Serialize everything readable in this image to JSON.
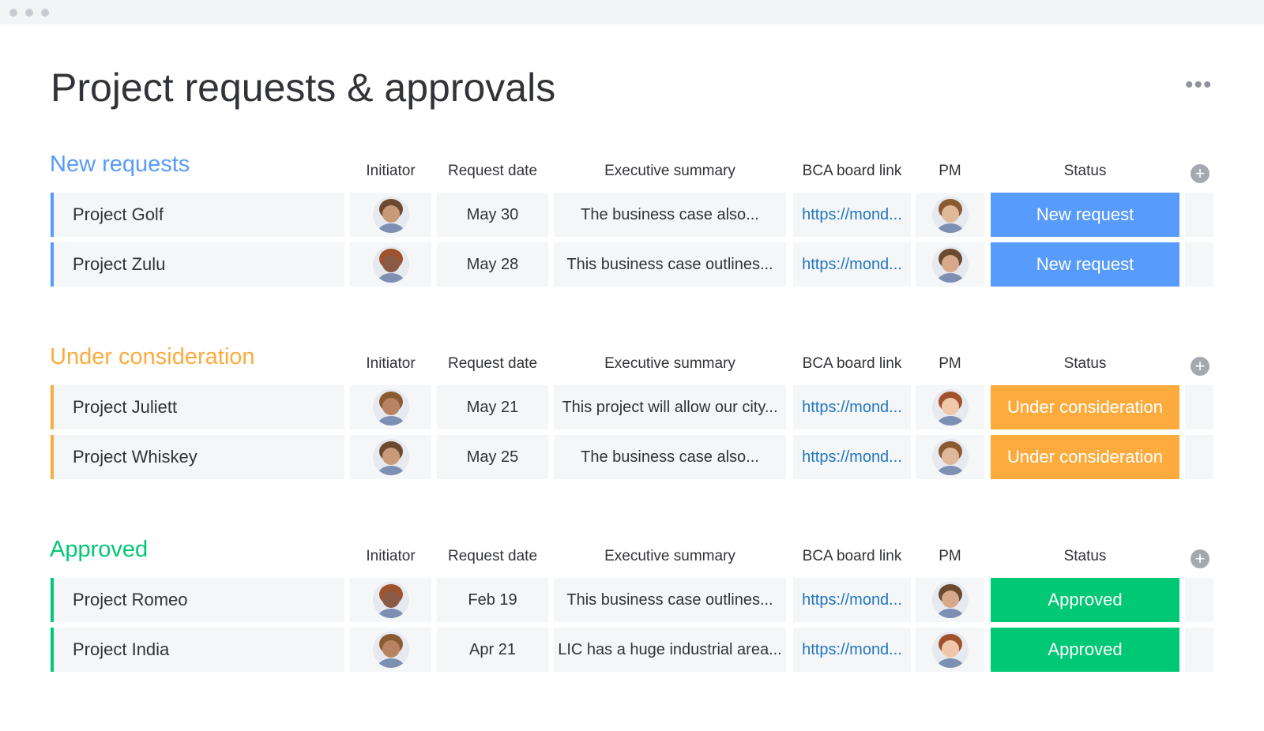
{
  "title": "Project requests & approvals",
  "columns": [
    "Initiator",
    "Request date",
    "Executive summary",
    "BCA board link",
    "PM",
    "Status"
  ],
  "groups": [
    {
      "name": "New requests",
      "color": "#579bfc",
      "rows": [
        {
          "name": "Project Golf",
          "date": "May 30",
          "summary": "The business case also...",
          "link": "https://mond...",
          "status": "New request"
        },
        {
          "name": "Project Zulu",
          "date": "May 28",
          "summary": "This business case outlines...",
          "link": "https://mond...",
          "status": "New request"
        }
      ]
    },
    {
      "name": "Under consideration",
      "color": "#fdab3d",
      "rows": [
        {
          "name": "Project Juliett",
          "date": "May 21",
          "summary": "This project will allow our city...",
          "link": "https://mond...",
          "status": "Under consideration"
        },
        {
          "name": "Project Whiskey",
          "date": "May 25",
          "summary": "The business case also...",
          "link": "https://mond...",
          "status": "Under consideration"
        }
      ]
    },
    {
      "name": "Approved",
      "color": "#00c875",
      "rows": [
        {
          "name": "Project Romeo",
          "date": "Feb 19",
          "summary": "This business case outlines...",
          "link": "https://mond...",
          "status": "Approved"
        },
        {
          "name": "Project India",
          "date": "Apr 21",
          "summary": "LIC has a huge industrial area...",
          "link": "https://mond...",
          "status": "Approved"
        }
      ]
    }
  ]
}
